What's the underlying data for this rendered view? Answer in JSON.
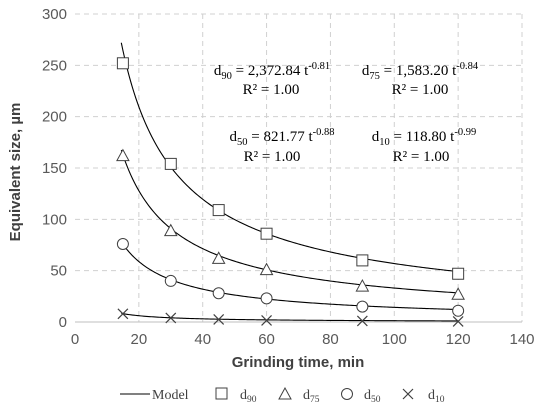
{
  "chart_data": {
    "type": "scatter",
    "title": "",
    "xlabel": "Grinding time, min",
    "ylabel": "Equivalent size, µm",
    "xlim": [
      0,
      140
    ],
    "ylim": [
      0,
      300
    ],
    "x_ticks": [
      "0",
      "20",
      "40",
      "60",
      "80",
      "100",
      "120",
      "140"
    ],
    "y_ticks": [
      "0",
      "50",
      "100",
      "150",
      "200",
      "250",
      "300"
    ],
    "grid": "dashed",
    "legend_position": "bottom",
    "model_label": "Model",
    "x": [
      15,
      30,
      45,
      60,
      90,
      120
    ],
    "series": [
      {
        "name": "d",
        "sub": "90",
        "key": "d90",
        "marker": "square",
        "values": [
          252,
          154,
          109,
          86,
          60,
          47
        ],
        "a": 2372.84,
        "b": -0.81
      },
      {
        "name": "d",
        "sub": "75",
        "key": "d75",
        "marker": "triangle",
        "values": [
          162,
          89,
          62,
          51,
          35,
          27
        ],
        "a": 1583.2,
        "b": -0.84
      },
      {
        "name": "d",
        "sub": "50",
        "key": "d50",
        "marker": "circle",
        "values": [
          76,
          40,
          28,
          23,
          15,
          11
        ],
        "a": 821.77,
        "b": -0.88
      },
      {
        "name": "d",
        "sub": "10",
        "key": "d10",
        "marker": "x",
        "values": [
          8,
          4,
          2.5,
          1.5,
          1,
          0.5
        ],
        "a": 118.8,
        "b": -0.99
      }
    ],
    "annotations": [
      {
        "series": "d90",
        "d": "d",
        "sub": "90",
        "eq": " = 2,372.84 t",
        "exp": "-0.81",
        "r2": "R² = 1.00"
      },
      {
        "series": "d75",
        "d": "d",
        "sub": "75",
        "eq": " = 1,583.20 t",
        "exp": "-0.84",
        "r2": "R² = 1.00"
      },
      {
        "series": "d50",
        "d": "d",
        "sub": "50",
        "eq": " = 821.77 t",
        "exp": "-0.88",
        "r2": "R² = 1.00"
      },
      {
        "series": "d10",
        "d": "d",
        "sub": "10",
        "eq": " = 118.80 t",
        "exp": "-0.99",
        "r2": "R² = 1.00"
      }
    ]
  }
}
